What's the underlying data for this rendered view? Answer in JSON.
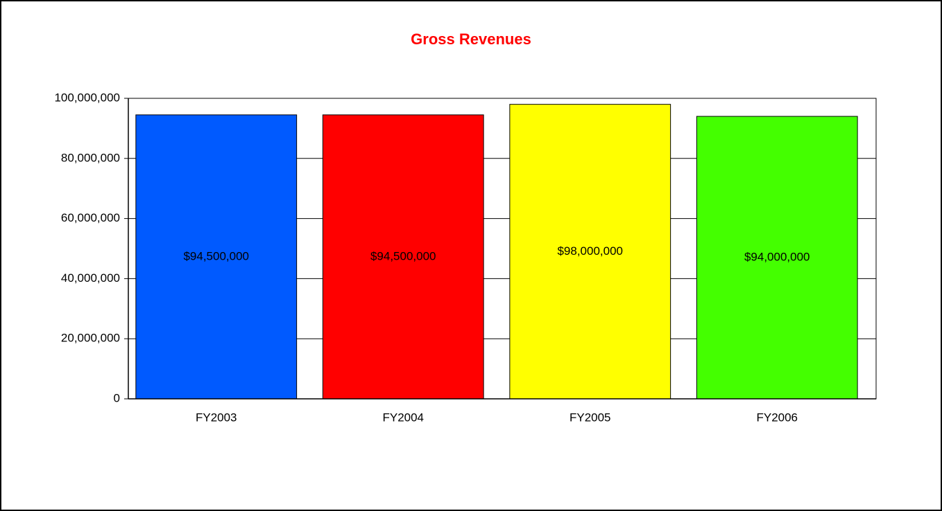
{
  "chart_data": {
    "type": "bar",
    "title": "Gross Revenues",
    "categories": [
      "FY2003",
      "FY2004",
      "FY2005",
      "FY2006"
    ],
    "values": [
      94500000,
      94500000,
      98000000,
      94000000
    ],
    "value_labels": [
      "$94,500,000",
      "$94,500,000",
      "$98,000,000",
      "$94,000,000"
    ],
    "colors": [
      "#005aff",
      "#ff0000",
      "#ffff00",
      "#44ff00"
    ],
    "ylim": [
      0,
      100000000
    ],
    "yticks": [
      0,
      {
        "value": 20000000,
        "label": "20,000,000"
      },
      {
        "value": 40000000,
        "label": "40,000,000"
      },
      {
        "value": 60000000,
        "label": "60,000,000"
      },
      {
        "value": 80000000,
        "label": "80,000,000"
      },
      {
        "value": 100000000,
        "label": "100,000,000"
      }
    ],
    "grid": true
  }
}
